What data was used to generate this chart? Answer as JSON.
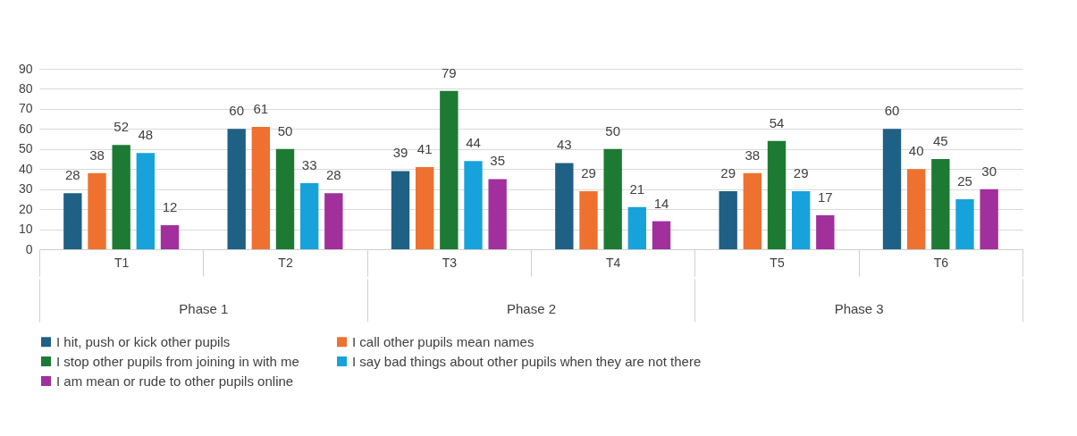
{
  "chart_data": {
    "type": "bar",
    "categories": [
      "T1",
      "T2",
      "T3",
      "T4",
      "T5",
      "T6"
    ],
    "series": [
      {
        "name": "I hit, push or kick other pupils",
        "color": "#1f6085",
        "values": [
          28,
          60,
          39,
          43,
          29,
          60
        ]
      },
      {
        "name": "I call other pupils mean names",
        "color": "#ee7130",
        "values": [
          38,
          61,
          41,
          29,
          38,
          40
        ]
      },
      {
        "name": "I stop other pupils from joining in with me",
        "color": "#1d7a33",
        "values": [
          52,
          50,
          79,
          50,
          54,
          45
        ]
      },
      {
        "name": "I say bad things about other pupils when they are not there",
        "color": "#17a2dc",
        "values": [
          48,
          33,
          44,
          21,
          29,
          25
        ]
      },
      {
        "name": "I am mean or rude to other pupils online",
        "color": "#a12f9c",
        "values": [
          12,
          28,
          35,
          14,
          17,
          30
        ]
      }
    ],
    "ylim": [
      0,
      90
    ],
    "yticks": [
      0,
      10,
      20,
      30,
      40,
      50,
      60,
      70,
      80,
      90
    ],
    "grid": "y",
    "data_labels": true,
    "legend": "bottom",
    "annotations": [
      "Phase 1",
      "Phase 2",
      "Phase 3"
    ]
  }
}
